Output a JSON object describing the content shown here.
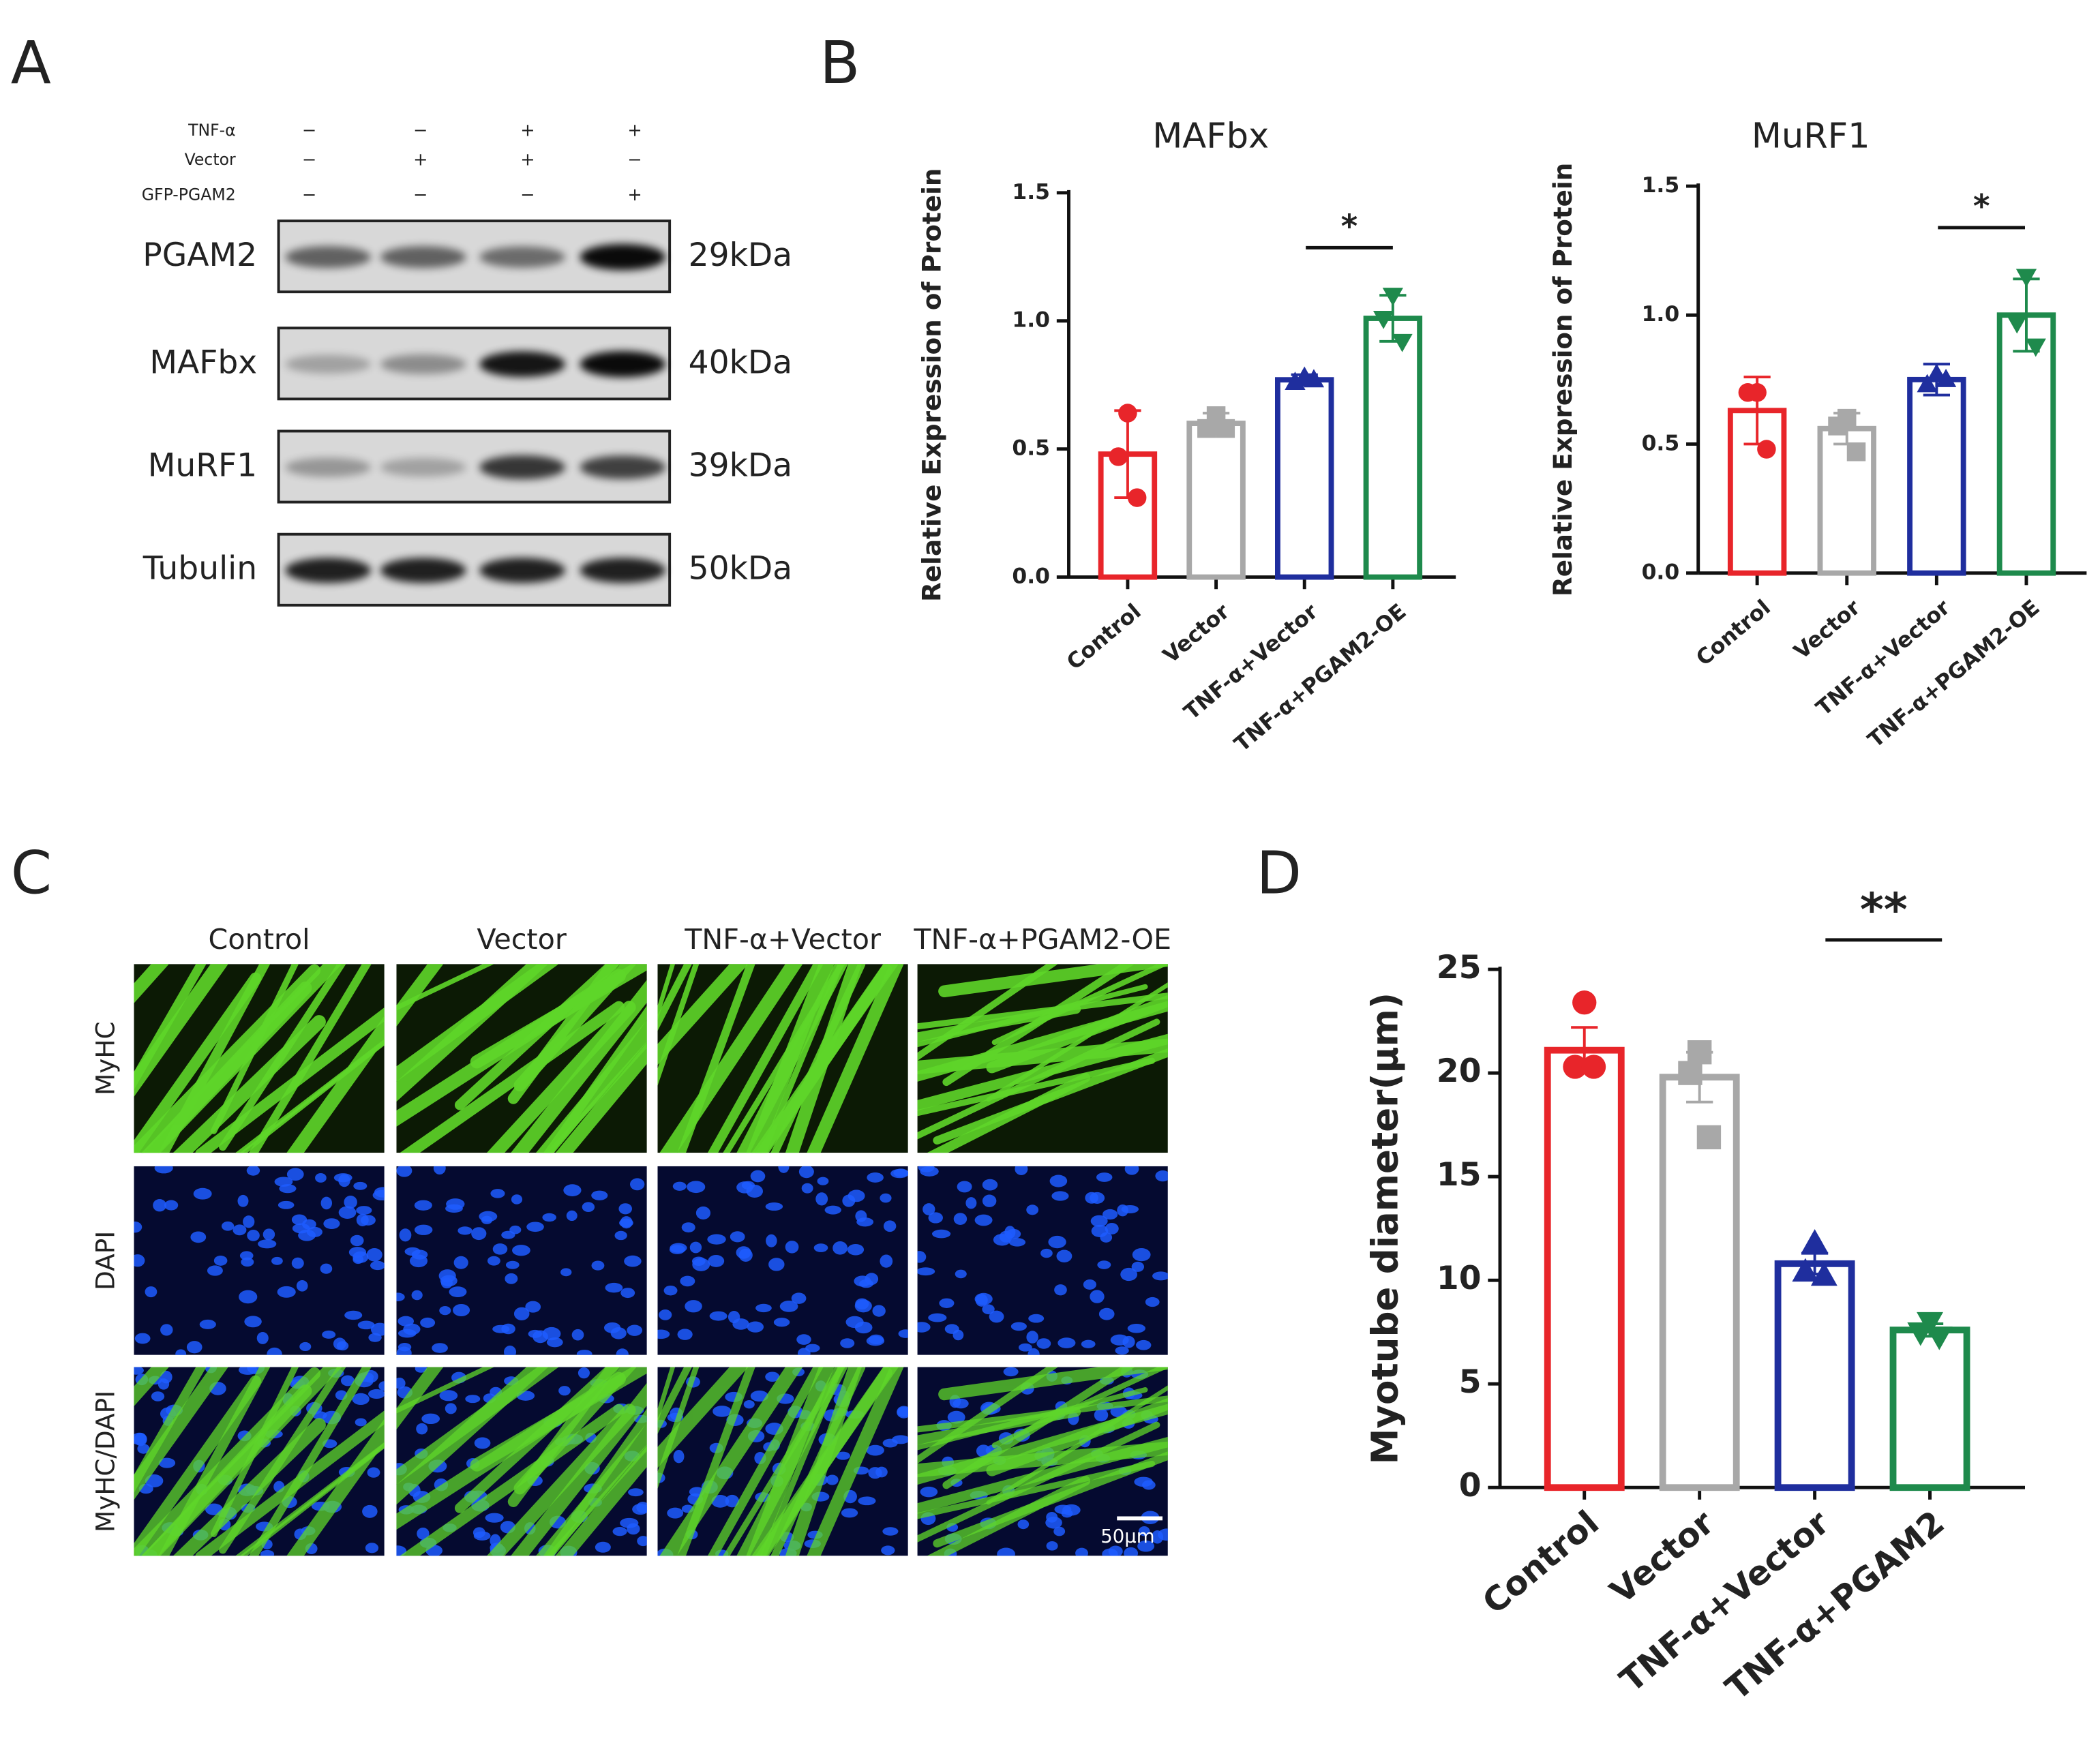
{
  "panels": {
    "a": "A",
    "b": "B",
    "c": "C",
    "d": "D"
  },
  "western_blot": {
    "conditions": [
      {
        "label": "TNF-α",
        "signs": [
          "−",
          "−",
          "+",
          "+"
        ]
      },
      {
        "label": "Vector",
        "signs": [
          "−",
          "+",
          "+",
          "−"
        ]
      },
      {
        "label": "GFP-PGAM2",
        "signs": [
          "−",
          "−",
          "−",
          "+"
        ]
      }
    ],
    "proteins": [
      {
        "name": "PGAM2",
        "size": "29kDa"
      },
      {
        "name": "MAFbx",
        "size": "40kDa"
      },
      {
        "name": "MuRF1",
        "size": "39kDa"
      },
      {
        "name": "Tubulin",
        "size": "50kDa"
      }
    ]
  },
  "microscopy": {
    "columns": [
      "Control",
      "Vector",
      "TNF-α+Vector",
      "TNF-α+PGAM2-OE"
    ],
    "rows": [
      "MyHC",
      "DAPI",
      "MyHC/DAPI"
    ],
    "scale_bar": "50μm"
  },
  "chart_data": [
    {
      "type": "bar",
      "title": "MAFbx",
      "ylabel": "Relative Expression of Protein",
      "categories": [
        "Control",
        "Vector",
        "TNF-α+Vector",
        "TNF-α+PGAM2-OE"
      ],
      "values": [
        0.48,
        0.6,
        0.77,
        1.01
      ],
      "errors": [
        0.17,
        0.04,
        0.02,
        0.09
      ],
      "points": [
        [
          0.64,
          0.47,
          0.31
        ],
        [
          0.63,
          0.58,
          0.58
        ],
        [
          0.78,
          0.76,
          0.77
        ],
        [
          1.1,
          1.01,
          0.92
        ]
      ],
      "colors": [
        "#e8252a",
        "#a8a8a8",
        "#1f2e9e",
        "#1e8a4c"
      ],
      "markers": [
        "circle",
        "square",
        "triangle-up",
        "triangle-down"
      ],
      "ylim": [
        0,
        1.5
      ],
      "yticks": [
        {
          "value": 0,
          "label": "0.0"
        },
        {
          "value": 0.5,
          "label": "0.5"
        },
        {
          "value": 1,
          "label": "1.0"
        },
        {
          "value": 1.5,
          "label": "1.5"
        }
      ],
      "annotation": "*"
    },
    {
      "type": "bar",
      "title": "MuRF1",
      "ylabel": "Relative Expression of Protein",
      "categories": [
        "Control",
        "Vector",
        "TNF-α+Vector",
        "TNF-α+PGAM2-OE"
      ],
      "values": [
        0.63,
        0.56,
        0.75,
        1.0
      ],
      "errors": [
        0.13,
        0.06,
        0.06,
        0.14
      ],
      "points": [
        [
          0.7,
          0.7,
          0.48
        ],
        [
          0.6,
          0.57,
          0.47
        ],
        [
          0.77,
          0.73,
          0.75
        ],
        [
          1.15,
          0.97,
          0.88
        ]
      ],
      "colors": [
        "#e8252a",
        "#a8a8a8",
        "#1f2e9e",
        "#1e8a4c"
      ],
      "markers": [
        "circle",
        "square",
        "triangle-up",
        "triangle-down"
      ],
      "ylim": [
        0,
        1.5
      ],
      "yticks": [
        {
          "value": 0,
          "label": "0.0"
        },
        {
          "value": 0.5,
          "label": "0.5"
        },
        {
          "value": 1,
          "label": "1.0"
        },
        {
          "value": 1.5,
          "label": "1.5"
        }
      ],
      "annotation": "*"
    },
    {
      "type": "bar",
      "ylabel": "Myotube diameter(μm)",
      "categories": [
        "Control",
        "Vector",
        "TNF-α+Vector",
        "TNF-α+PGAM2"
      ],
      "values": [
        21.1,
        19.8,
        10.8,
        7.6
      ],
      "errors": [
        1.1,
        1.2,
        0.5,
        0.3
      ],
      "points": [
        [
          23.4,
          20.3,
          20.3
        ],
        [
          21,
          20,
          16.9
        ],
        [
          11.8,
          10.4,
          10.2
        ],
        [
          8,
          7.5,
          7.3
        ]
      ],
      "colors": [
        "#e8252a",
        "#a8a8a8",
        "#1f2e9e",
        "#1e8a4c"
      ],
      "markers": [
        "circle",
        "square",
        "triangle-up",
        "triangle-down"
      ],
      "ylim": [
        0,
        25
      ],
      "yticks": [
        0,
        5,
        10,
        15,
        20,
        25
      ],
      "annotation": "**"
    }
  ]
}
